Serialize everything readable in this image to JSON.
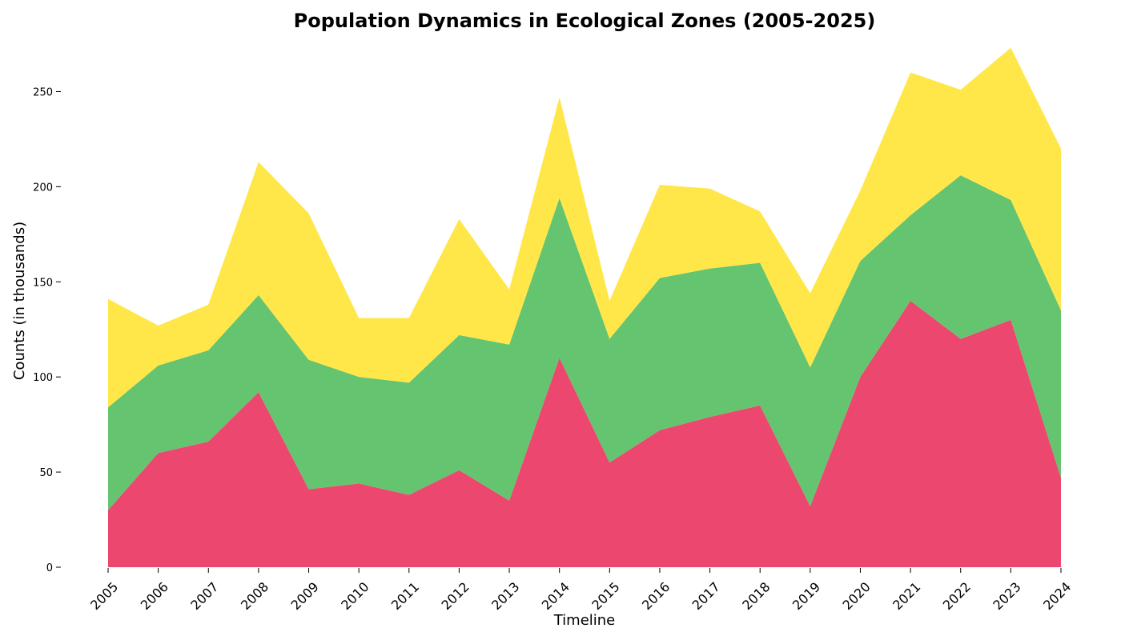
{
  "chart_data": {
    "type": "area",
    "stacked": true,
    "title": "Population Dynamics in Ecological Zones (2005-2025)",
    "xlabel": "Timeline",
    "ylabel": "Counts (in thousands)",
    "x": [
      "2005",
      "2006",
      "2007",
      "2008",
      "2009",
      "2010",
      "2011",
      "2012",
      "2013",
      "2014",
      "2015",
      "2016",
      "2017",
      "2018",
      "2019",
      "2020",
      "2021",
      "2022",
      "2023",
      "2024"
    ],
    "ylim": [
      0,
      275
    ],
    "yticks": [
      0,
      50,
      100,
      150,
      200,
      250
    ],
    "grid": false,
    "legend": "none",
    "series": [
      {
        "color": "#EC476E",
        "values": [
          30,
          60,
          66,
          92,
          41,
          44,
          38,
          51,
          35,
          110,
          55,
          72,
          79,
          85,
          32,
          100,
          140,
          120,
          130,
          47
        ]
      },
      {
        "color": "#64C46F",
        "values": [
          54,
          46,
          48,
          51,
          68,
          56,
          59,
          71,
          82,
          84,
          65,
          80,
          78,
          75,
          73,
          61,
          45,
          86,
          63,
          88
        ]
      },
      {
        "color": "#FFE74A",
        "values": [
          57,
          21,
          24,
          70,
          77,
          31,
          34,
          61,
          29,
          53,
          20,
          49,
          42,
          27,
          39,
          37,
          75,
          45,
          80,
          85
        ]
      }
    ]
  }
}
